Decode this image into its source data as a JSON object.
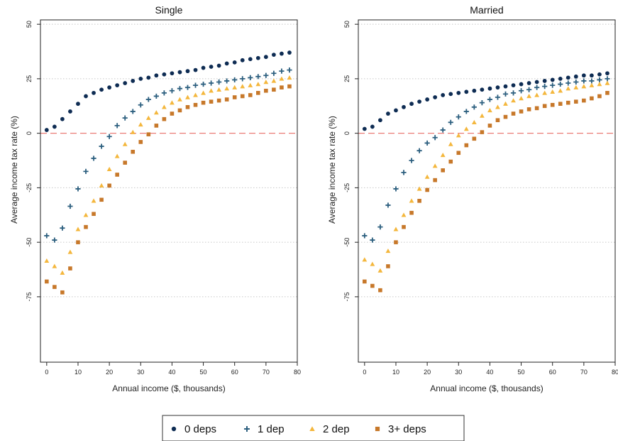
{
  "colors": {
    "0 deps": "#0e2c53",
    "1 dep": "#2c5f7f",
    "2 dep": "#f4b73d",
    "3+ deps": "#c7782a",
    "zero_line": "#ea7b76",
    "grid": "#c8c8c8"
  },
  "legend": {
    "position": "bottom-center",
    "items": [
      {
        "label": "0 deps",
        "marker": "circle"
      },
      {
        "label": "1 dep",
        "marker": "plus"
      },
      {
        "label": "2 dep",
        "marker": "triangle"
      },
      {
        "label": "3+ deps",
        "marker": "square"
      }
    ]
  },
  "chart_data": [
    {
      "type": "scatter",
      "title": "Single",
      "xlabel": "Annual income ($, thousands)",
      "ylabel": "Average income tax rate (%)",
      "xlim": [
        -2,
        80
      ],
      "ylim": [
        -105,
        52
      ],
      "xticks": [
        0,
        10,
        20,
        30,
        40,
        50,
        60,
        70,
        80
      ],
      "yticks": [
        50,
        25,
        0,
        -25,
        -50,
        -75
      ],
      "grid": true,
      "reference_line": 0,
      "series": [
        {
          "name": "0 deps",
          "marker": "circle",
          "x": [
            0,
            2.5,
            5,
            7.5,
            10,
            12.5,
            15,
            17.5,
            20,
            22.5,
            25,
            27.5,
            30,
            32.5,
            35,
            37.5,
            40,
            42.5,
            45,
            47.5,
            50,
            52.5,
            55,
            57.5,
            60,
            62.5,
            65,
            67.5,
            70,
            72.5,
            75,
            77.5
          ],
          "y": [
            1.5,
            3,
            6.5,
            10,
            13.5,
            17,
            18.5,
            20,
            21,
            22,
            23,
            24,
            25,
            25.5,
            26.5,
            27,
            27.5,
            28,
            28.5,
            29,
            30,
            30.5,
            31,
            32,
            32.5,
            33.5,
            34,
            34.5,
            35,
            36,
            36.5,
            37
          ]
        },
        {
          "name": "1 dep",
          "marker": "plus",
          "x": [
            0,
            2.5,
            5,
            7.5,
            10,
            12.5,
            15,
            17.5,
            20,
            22.5,
            25,
            27.5,
            30,
            32.5,
            35,
            37.5,
            40,
            42.5,
            45,
            47.5,
            50,
            52.5,
            55,
            57.5,
            60,
            62.5,
            65,
            67.5,
            70,
            72.5,
            75,
            77.5
          ],
          "y": [
            -47,
            -49,
            -43.5,
            -33.5,
            -25.5,
            -17.5,
            -11.5,
            -6,
            -1.5,
            3.5,
            7,
            10,
            13,
            15.5,
            17,
            18.5,
            19.5,
            20.5,
            21,
            22,
            22.5,
            23,
            23.5,
            24,
            24.5,
            25,
            25.5,
            26,
            26.5,
            27.5,
            28.5,
            29
          ]
        },
        {
          "name": "2 dep",
          "marker": "triangle",
          "x": [
            0,
            2.5,
            5,
            7.5,
            10,
            12.5,
            15,
            17.5,
            20,
            22.5,
            25,
            27.5,
            30,
            32.5,
            35,
            37.5,
            40,
            42.5,
            45,
            47.5,
            50,
            52.5,
            55,
            57.5,
            60,
            62.5,
            65,
            67.5,
            70,
            72.5,
            75,
            77.5
          ],
          "y": [
            -58.5,
            -61,
            -64,
            -54.5,
            -44,
            -37.5,
            -31,
            -24,
            -16.5,
            -10.5,
            -5,
            0.5,
            4,
            7,
            9.5,
            12,
            14,
            15.5,
            16.5,
            17.5,
            18.5,
            19.5,
            20,
            20.5,
            21,
            21.5,
            22,
            22.5,
            23.5,
            24,
            25,
            25.5
          ]
        },
        {
          "name": "3+ deps",
          "marker": "square",
          "x": [
            0,
            2.5,
            5,
            7.5,
            10,
            12.5,
            15,
            17.5,
            20,
            22.5,
            25,
            27.5,
            30,
            32.5,
            35,
            37.5,
            40,
            42.5,
            45,
            47.5,
            50,
            52.5,
            55,
            57.5,
            60,
            62.5,
            65,
            67.5,
            70,
            72.5,
            75,
            77.5
          ],
          "y": [
            -68,
            -70.5,
            -73,
            -62,
            -50,
            -43,
            -37,
            -30.5,
            -24,
            -19,
            -13.5,
            -8.5,
            -4,
            -0.5,
            3.5,
            6.5,
            9,
            10.5,
            12,
            13,
            14,
            14.5,
            15,
            15.5,
            16.5,
            17,
            17.5,
            18.5,
            19.5,
            20,
            21,
            21.5
          ]
        }
      ]
    },
    {
      "type": "scatter",
      "title": "Married",
      "xlabel": "Annual income ($, thousands)",
      "ylabel": "Average income tax rate (%)",
      "xlim": [
        -2,
        80
      ],
      "ylim": [
        -105,
        52
      ],
      "xticks": [
        0,
        10,
        20,
        30,
        40,
        50,
        60,
        70,
        80
      ],
      "yticks": [
        50,
        25,
        0,
        -25,
        -50,
        -75
      ],
      "grid": true,
      "reference_line": 0,
      "series": [
        {
          "name": "0 deps",
          "marker": "circle",
          "x": [
            0,
            2.5,
            5,
            7.5,
            10,
            12.5,
            15,
            17.5,
            20,
            22.5,
            25,
            27.5,
            30,
            32.5,
            35,
            37.5,
            40,
            42.5,
            45,
            47.5,
            50,
            52.5,
            55,
            57.5,
            60,
            62.5,
            65,
            67.5,
            70,
            72.5,
            75,
            77.5
          ],
          "y": [
            2,
            3,
            6,
            9,
            10.5,
            12,
            13.5,
            14.5,
            15.5,
            16.5,
            17.5,
            18,
            18.5,
            19,
            19.5,
            20,
            20.5,
            21,
            21.5,
            22,
            22.5,
            23,
            23.5,
            24,
            24.5,
            25,
            25.5,
            26,
            26.5,
            26.5,
            27,
            27.5
          ]
        },
        {
          "name": "1 dep",
          "marker": "plus",
          "x": [
            0,
            2.5,
            5,
            7.5,
            10,
            12.5,
            15,
            17.5,
            20,
            22.5,
            25,
            27.5,
            30,
            32.5,
            35,
            37.5,
            40,
            42.5,
            45,
            47.5,
            50,
            52.5,
            55,
            57.5,
            60,
            62.5,
            65,
            67.5,
            70,
            72.5,
            75,
            77.5
          ],
          "y": [
            -47,
            -49,
            -43,
            -33,
            -25.5,
            -18,
            -12.5,
            -8,
            -4.5,
            -2,
            1.5,
            5,
            7.5,
            10,
            12,
            14,
            15.5,
            16.5,
            18,
            18.5,
            19.5,
            20,
            21,
            21.5,
            22,
            22.5,
            23,
            23.5,
            24,
            24,
            24.5,
            25
          ]
        },
        {
          "name": "2 dep",
          "marker": "triangle",
          "x": [
            0,
            2.5,
            5,
            7.5,
            10,
            12.5,
            15,
            17.5,
            20,
            22.5,
            25,
            27.5,
            30,
            32.5,
            35,
            37.5,
            40,
            42.5,
            45,
            47.5,
            50,
            52.5,
            55,
            57.5,
            60,
            62.5,
            65,
            67.5,
            70,
            72.5,
            75,
            77.5
          ],
          "y": [
            -58,
            -60,
            -63,
            -54,
            -44,
            -37.5,
            -31,
            -25.5,
            -20,
            -15,
            -10,
            -5,
            -1,
            2,
            5,
            8,
            10.5,
            12,
            13.5,
            15,
            16,
            17,
            17.5,
            18.5,
            19,
            19.5,
            20.5,
            21,
            21.5,
            22,
            22.5,
            23
          ]
        },
        {
          "name": "3+ deps",
          "marker": "square",
          "x": [
            0,
            2.5,
            5,
            7.5,
            10,
            12.5,
            15,
            17.5,
            20,
            22.5,
            25,
            27.5,
            30,
            32.5,
            35,
            37.5,
            40,
            42.5,
            45,
            47.5,
            50,
            52.5,
            55,
            57.5,
            60,
            62.5,
            65,
            67.5,
            70,
            72.5,
            75,
            77.5
          ],
          "y": [
            -68,
            -70,
            -72,
            -61,
            -50,
            -43,
            -36.5,
            -31,
            -26,
            -21.5,
            -17,
            -13,
            -9,
            -5.5,
            -2.5,
            0.5,
            3.5,
            6,
            7.5,
            9,
            10,
            11,
            11.5,
            12.5,
            13,
            13.5,
            14,
            14.5,
            15,
            16,
            17,
            18.5
          ]
        }
      ]
    }
  ]
}
